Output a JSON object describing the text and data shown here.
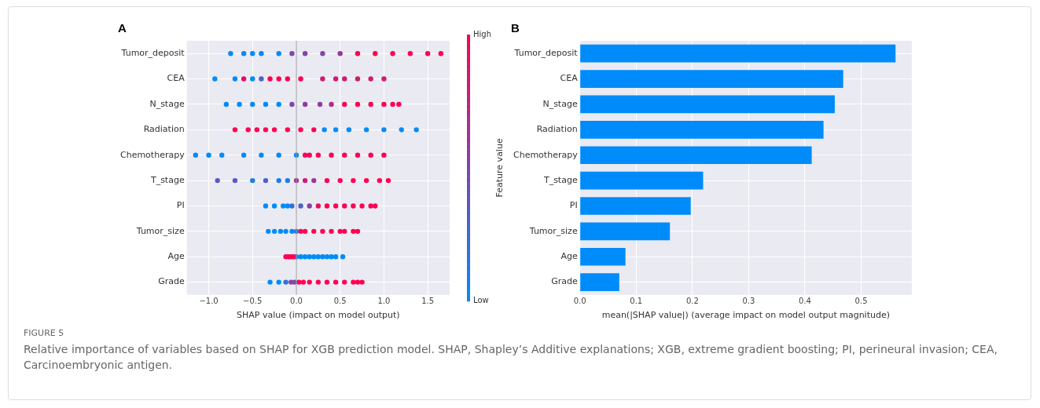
{
  "chart_data": [
    {
      "type": "scatter",
      "title": "A",
      "orientation": "horizontal",
      "xlabel": "SHAP value (impact on model output)",
      "clabel": "Feature value",
      "categories": [
        "Tumor_deposit",
        "CEA",
        "N_stage",
        "Radiation",
        "Chemotherapy",
        "T_stage",
        "PI",
        "Tumor_size",
        "Age",
        "Grade"
      ],
      "xlim": [
        -1.25,
        1.75
      ],
      "xticks": [
        {
          "value": -1,
          "label": "−1.0"
        },
        {
          "value": -0.5,
          "label": "−0.5"
        },
        {
          "value": 0,
          "label": "0.0"
        },
        {
          "value": 0.5,
          "label": "0.5"
        },
        {
          "value": 1,
          "label": "1.0"
        },
        {
          "value": 1.5,
          "label": "1.5"
        }
      ],
      "clim": [
        0,
        1
      ],
      "cticks": [
        {
          "value": 0,
          "label": "Low"
        },
        {
          "value": 1,
          "label": "High"
        }
      ],
      "grid": true,
      "marker": "circle",
      "ref_lines": [
        {
          "axis": "x",
          "value": 0,
          "color": "#999999"
        }
      ],
      "series": [
        {
          "values": [
            -0.75,
            -0.93,
            -0.8,
            -0.7,
            -1.15,
            -0.9,
            -0.35,
            -0.32,
            -0.12,
            -0.3
          ],
          "colors": [
            "#008bfb",
            "#008bfb",
            "#008bfb",
            "#ff0052",
            "#008bfb",
            "#595ac0",
            "#008bfb",
            "#008bfb",
            "#ff0052",
            "#008bfb"
          ]
        },
        {
          "values": [
            -0.6,
            -0.7,
            -0.65,
            -0.55,
            -1.0,
            -0.7,
            -0.25,
            -0.25,
            -0.09,
            -0.2
          ],
          "colors": [
            "#008bfb",
            "#008bfb",
            "#008bfb",
            "#ff0052",
            "#008bfb",
            "#595ac0",
            "#008bfb",
            "#008bfb",
            "#ff0052",
            "#008bfb"
          ]
        },
        {
          "values": [
            -0.5,
            -0.6,
            -0.5,
            -0.45,
            -0.85,
            -0.5,
            -0.15,
            -0.18,
            -0.06,
            -0.12
          ],
          "colors": [
            "#008bfb",
            "#e60e63",
            "#008bfb",
            "#ff0052",
            "#008bfb",
            "#1a7dea",
            "#008bfb",
            "#008bfb",
            "#ff0052",
            "#336fd9"
          ]
        },
        {
          "values": [
            -0.4,
            -0.5,
            -0.35,
            -0.35,
            -0.6,
            -0.35,
            -0.1,
            -0.12,
            -0.03,
            -0.06
          ],
          "colors": [
            "#008bfb",
            "#008bfb",
            "#008bfb",
            "#ff0052",
            "#008bfb",
            "#4d61c8",
            "#008bfb",
            "#008bfb",
            "#ff0052",
            "#8046a7"
          ]
        },
        {
          "values": [
            -0.2,
            -0.4,
            -0.2,
            -0.25,
            -0.4,
            -0.2,
            -0.05,
            -0.05,
            0.0,
            -0.02
          ],
          "colors": [
            "#008bfb",
            "#4d61c8",
            "#008bfb",
            "#ff0052",
            "#008bfb",
            "#1a7dea",
            "#336fd9",
            "#008bfb",
            "#008bfb",
            "#8046a7"
          ]
        },
        {
          "values": [
            -0.05,
            -0.3,
            -0.05,
            -0.1,
            -0.2,
            -0.1,
            0.05,
            0.0,
            0.05,
            0.03
          ],
          "colors": [
            "#8046a7",
            "#ff0052",
            "#8046a7",
            "#ff0052",
            "#008bfb",
            "#1a7dea",
            "#4d61c8",
            "#336fd9",
            "#008bfb",
            "#ff0052"
          ]
        },
        {
          "values": [
            0.1,
            -0.2,
            0.1,
            0.05,
            0.0,
            0.0,
            0.15,
            0.05,
            0.1,
            0.08
          ],
          "colors": [
            "#8046a7",
            "#ff0052",
            "#8c3f9e",
            "#ff0052",
            "#008bfb",
            "#a6318d",
            "#8046a7",
            "#ff0052",
            "#008bfb",
            "#ff0052"
          ]
        },
        {
          "values": [
            0.3,
            -0.1,
            0.27,
            0.2,
            0.1,
            0.1,
            0.25,
            0.1,
            0.15,
            0.15
          ],
          "colors": [
            "#8046a7",
            "#ff0052",
            "#8c3f9e",
            "#ff0052",
            "#ff0052",
            "#cc1c74",
            "#e60e63",
            "#ff0052",
            "#008bfb",
            "#ff0052"
          ]
        },
        {
          "values": [
            0.5,
            0.05,
            0.4,
            0.32,
            0.15,
            0.2,
            0.35,
            0.2,
            0.2,
            0.25
          ],
          "colors": [
            "#993896",
            "#ff0052",
            "#b32a85",
            "#008bfb",
            "#ff0052",
            "#993896",
            "#ff0052",
            "#ff0052",
            "#008bfb",
            "#ff0052"
          ]
        },
        {
          "values": [
            0.7,
            0.3,
            0.55,
            0.45,
            0.25,
            0.35,
            0.45,
            0.3,
            0.25,
            0.35
          ],
          "colors": [
            "#ff0052",
            "#cc1c74",
            "#ff0052",
            "#008bfb",
            "#ff0052",
            "#ff0052",
            "#ff0052",
            "#ff0052",
            "#008bfb",
            "#ff0052"
          ]
        },
        {
          "values": [
            0.9,
            0.45,
            0.7,
            0.6,
            0.4,
            0.5,
            0.55,
            0.4,
            0.3,
            0.45
          ],
          "colors": [
            "#ff0052",
            "#cc1c74",
            "#ff0052",
            "#008bfb",
            "#ff0052",
            "#ff0052",
            "#ff0052",
            "#ff0052",
            "#008bfb",
            "#ff0052"
          ]
        },
        {
          "values": [
            1.1,
            0.55,
            0.85,
            0.8,
            0.55,
            0.65,
            0.65,
            0.5,
            0.35,
            0.55
          ],
          "colors": [
            "#ff0052",
            "#cc1c74",
            "#ff0052",
            "#008bfb",
            "#ff0052",
            "#ff0052",
            "#ff0052",
            "#ff0052",
            "#008bfb",
            "#ff0052"
          ]
        },
        {
          "values": [
            1.3,
            0.7,
            1.0,
            1.0,
            0.7,
            0.8,
            0.75,
            0.55,
            0.4,
            0.65
          ],
          "colors": [
            "#ff0052",
            "#cc1c74",
            "#ff0052",
            "#008bfb",
            "#ff0052",
            "#ff0052",
            "#ff0052",
            "#ff0052",
            "#008bfb",
            "#ff0052"
          ]
        },
        {
          "values": [
            1.5,
            0.85,
            1.1,
            1.2,
            0.85,
            0.95,
            0.85,
            0.65,
            0.45,
            0.7
          ],
          "colors": [
            "#ff0052",
            "#cc1c74",
            "#ff0052",
            "#008bfb",
            "#ff0052",
            "#ff0052",
            "#ff0052",
            "#ff0052",
            "#008bfb",
            "#ff0052"
          ]
        },
        {
          "values": [
            1.65,
            1.0,
            1.17,
            1.37,
            1.0,
            1.05,
            0.9,
            0.7,
            0.53,
            0.75
          ],
          "colors": [
            "#ff0052",
            "#cc1c74",
            "#ff0052",
            "#008bfb",
            "#ff0052",
            "#ff0052",
            "#ff0052",
            "#ff0052",
            "#008bfb",
            "#ff0052"
          ]
        }
      ],
      "annotations": [
        "FIGURE 5",
        "Relative importance of variables based on SHAP for XGB prediction model. SHAP, Shapley’s Additive explanations; XGB, extreme gradient boosting; PI, perineural invasion; CEA, Carcinoembryonic antigen."
      ]
    },
    {
      "type": "bar",
      "title": "B",
      "orientation": "horizontal",
      "xlabel": "mean(|SHAP value|) (average impact on model output magnitude)",
      "categories": [
        "Tumor_deposit",
        "CEA",
        "N_stage",
        "Radiation",
        "Chemotherapy",
        "T_stage",
        "PI",
        "Tumor_size",
        "Age",
        "Grade"
      ],
      "values": [
        0.561,
        0.468,
        0.453,
        0.433,
        0.412,
        0.219,
        0.197,
        0.16,
        0.081,
        0.07
      ],
      "color": "#008bfb",
      "xlim": [
        0,
        0.59
      ],
      "xticks": [
        {
          "value": 0,
          "label": "0.0"
        },
        {
          "value": 0.1,
          "label": "0.1"
        },
        {
          "value": 0.2,
          "label": "0.2"
        },
        {
          "value": 0.3,
          "label": "0.3"
        },
        {
          "value": 0.4,
          "label": "0.4"
        },
        {
          "value": 0.5,
          "label": "0.5"
        }
      ],
      "grid": true
    }
  ]
}
